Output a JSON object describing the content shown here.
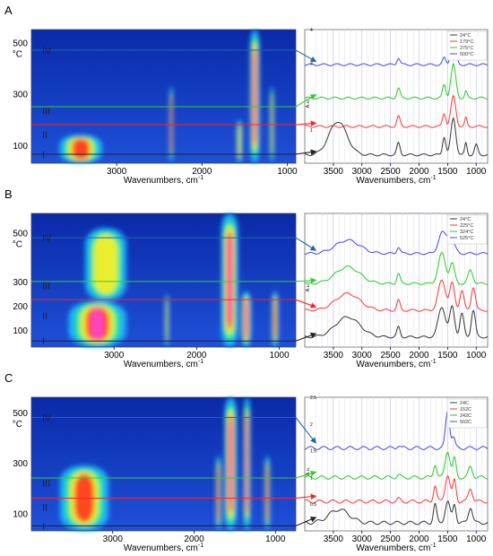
{
  "panels": [
    {
      "letter": "A",
      "heatmap": {
        "type": "heatmap",
        "xlabel": "Wavenumbers, cm",
        "xlabel_sup": "-1",
        "x_reversed": true,
        "x_ticks": [
          3000,
          2000,
          1000
        ],
        "y_unit": "°C",
        "y_ticks": [
          100,
          300,
          500
        ],
        "xlim": [
          4000,
          900
        ],
        "ylim": [
          30,
          550
        ],
        "regions": [
          "I",
          "II",
          "III",
          "IV"
        ],
        "guides": [
          {
            "y": 65,
            "color": "#222222"
          },
          {
            "y": 180,
            "color": "#ff2222"
          },
          {
            "y": 250,
            "color": "#33cc33"
          },
          {
            "y": 470,
            "color": "#2266aa"
          }
        ],
        "bands": [
          {
            "x": 3420,
            "w": 500,
            "y0": 30,
            "y1": 140,
            "i": 0.75
          },
          {
            "x": 2360,
            "w": 40,
            "y0": 30,
            "y1": 330,
            "i": 0.55
          },
          {
            "x": 1560,
            "w": 60,
            "y0": 30,
            "y1": 200,
            "i": 0.45
          },
          {
            "x": 1380,
            "w": 110,
            "y0": 30,
            "y1": 550,
            "i": 1.0
          },
          {
            "x": 1180,
            "w": 40,
            "y0": 30,
            "y1": 330,
            "i": 0.4
          }
        ]
      },
      "spectra": {
        "type": "line",
        "ylabel": "A.u.",
        "x_reversed": true,
        "x_ticks": [
          3500,
          3000,
          2500,
          2000,
          1500,
          1000
        ],
        "xlim": [
          4000,
          800
        ],
        "y_ticks": [
          1,
          2,
          3,
          4
        ],
        "ylim": [
          0,
          4
        ],
        "xlabel": "Wavenumbers, cm",
        "xlabel_sup": "-1",
        "series": [
          {
            "name": "24°C",
            "color": "#333333",
            "offset": 0.25,
            "peaks": [
              [
                3420,
                1.0,
                220
              ],
              [
                2360,
                0.35,
                40
              ],
              [
                1560,
                0.55,
                40
              ],
              [
                1400,
                1.1,
                60
              ],
              [
                1180,
                0.35,
                30
              ],
              [
                1000,
                0.3,
                40
              ]
            ]
          },
          {
            "name": "179°C",
            "color": "#ff3333",
            "offset": 1.1,
            "peaks": [
              [
                2360,
                0.3,
                40
              ],
              [
                1560,
                0.4,
                40
              ],
              [
                1400,
                0.9,
                60
              ],
              [
                1180,
                0.25,
                30
              ]
            ]
          },
          {
            "name": "275°C",
            "color": "#22cc22",
            "offset": 1.95,
            "peaks": [
              [
                2360,
                0.3,
                40
              ],
              [
                1560,
                0.4,
                40
              ],
              [
                1400,
                1.0,
                60
              ],
              [
                1180,
                0.2,
                30
              ]
            ]
          },
          {
            "name": "500°C",
            "color": "#4444ee",
            "offset": 2.95,
            "peaks": [
              [
                2360,
                0.2,
                40
              ],
              [
                1560,
                0.2,
                40
              ],
              [
                1400,
                1.0,
                55
              ]
            ]
          }
        ]
      }
    },
    {
      "letter": "B",
      "heatmap": {
        "type": "heatmap",
        "xlabel": "Wavenumbers, cm",
        "xlabel_sup": "-1",
        "x_reversed": true,
        "x_ticks": [
          3000,
          2000,
          1000
        ],
        "y_unit": "°C",
        "y_ticks": [
          100,
          200,
          300,
          500
        ],
        "xlim": [
          4000,
          800
        ],
        "ylim": [
          30,
          580
        ],
        "regions": [
          "I",
          "II",
          "III",
          "IV"
        ],
        "guides": [
          {
            "y": 55,
            "color": "#222222"
          },
          {
            "y": 225,
            "color": "#ff2222"
          },
          {
            "y": 300,
            "color": "#33cc33"
          },
          {
            "y": 480,
            "color": "#2266aa"
          }
        ],
        "bands": [
          {
            "x": 3200,
            "w": 700,
            "y0": 30,
            "y1": 220,
            "i": 0.9
          },
          {
            "x": 3100,
            "w": 500,
            "y0": 220,
            "y1": 520,
            "i": 0.5
          },
          {
            "x": 2360,
            "w": 40,
            "y0": 30,
            "y1": 250,
            "i": 0.5
          },
          {
            "x": 1600,
            "w": 200,
            "y0": 30,
            "y1": 580,
            "i": 1.0
          },
          {
            "x": 1400,
            "w": 120,
            "y0": 30,
            "y1": 260,
            "i": 0.95
          },
          {
            "x": 1050,
            "w": 80,
            "y0": 30,
            "y1": 260,
            "i": 0.6
          }
        ]
      },
      "spectra": {
        "type": "line",
        "ylabel": "A.u.",
        "x_reversed": true,
        "x_ticks": [
          3500,
          3000,
          2500,
          2000,
          1500,
          1000
        ],
        "xlim": [
          4000,
          800
        ],
        "y_ticks": [],
        "ylim": [
          0,
          4
        ],
        "xlabel": "Wavenumbers, cm",
        "xlabel_sup": "-1",
        "series": [
          {
            "name": "24°C",
            "color": "#333333",
            "offset": 0.3,
            "peaks": [
              [
                3250,
                0.6,
                300
              ],
              [
                2360,
                0.3,
                40
              ],
              [
                1600,
                0.9,
                90
              ],
              [
                1420,
                0.9,
                60
              ],
              [
                1250,
                0.7,
                50
              ],
              [
                1050,
                0.8,
                50
              ]
            ]
          },
          {
            "name": "225°C",
            "color": "#ff3333",
            "offset": 1.1,
            "peaks": [
              [
                3250,
                0.5,
                300
              ],
              [
                2360,
                0.3,
                40
              ],
              [
                1600,
                0.9,
                90
              ],
              [
                1420,
                0.8,
                60
              ],
              [
                1250,
                0.6,
                50
              ],
              [
                1050,
                0.7,
                50
              ]
            ]
          },
          {
            "name": "324°C",
            "color": "#22cc22",
            "offset": 1.9,
            "peaks": [
              [
                3250,
                0.5,
                300
              ],
              [
                2360,
                0.3,
                40
              ],
              [
                1600,
                0.9,
                90
              ],
              [
                1420,
                0.6,
                60
              ],
              [
                1100,
                0.4,
                60
              ]
            ]
          },
          {
            "name": "525°C",
            "color": "#4444ee",
            "offset": 2.8,
            "peaks": [
              [
                3250,
                0.4,
                300
              ],
              [
                2360,
                0.2,
                40
              ],
              [
                1600,
                0.6,
                90
              ],
              [
                1450,
                0.5,
                90
              ]
            ]
          }
        ]
      }
    },
    {
      "letter": "C",
      "heatmap": {
        "type": "heatmap",
        "xlabel": "Wavenumbers, cm",
        "xlabel_sup": "-1",
        "x_reversed": true,
        "x_ticks": [
          3000,
          2000,
          1000
        ],
        "y_unit": "°C",
        "y_ticks": [
          100,
          300,
          500
        ],
        "xlim": [
          4000,
          750
        ],
        "ylim": [
          30,
          560
        ],
        "regions": [
          "I",
          "II",
          "III",
          "IV"
        ],
        "guides": [
          {
            "y": 50,
            "color": "#222222"
          },
          {
            "y": 160,
            "color": "#ff2222"
          },
          {
            "y": 240,
            "color": "#33cc33"
          },
          {
            "y": 480,
            "color": "#2266aa"
          }
        ],
        "bands": [
          {
            "x": 3350,
            "w": 600,
            "y0": 30,
            "y1": 290,
            "i": 0.55
          },
          {
            "x": 1700,
            "w": 60,
            "y0": 30,
            "y1": 330,
            "i": 0.6
          },
          {
            "x": 1550,
            "w": 150,
            "y0": 30,
            "y1": 560,
            "i": 0.95
          },
          {
            "x": 1350,
            "w": 80,
            "y0": 30,
            "y1": 560,
            "i": 0.9
          },
          {
            "x": 1100,
            "w": 60,
            "y0": 30,
            "y1": 330,
            "i": 0.55
          }
        ]
      },
      "spectra": {
        "type": "line",
        "ylabel": "A.u.",
        "x_reversed": true,
        "x_ticks": [
          3500,
          3000,
          2500,
          2000,
          1500,
          1000
        ],
        "xlim": [
          4000,
          800
        ],
        "y_ticks": [
          0.5,
          1.0,
          1.5,
          2.0,
          2.5
        ],
        "ylim": [
          0,
          2.5
        ],
        "xlabel": "Wavenumbers, cm",
        "xlabel_sup": "-1",
        "series": [
          {
            "name": "24C",
            "color": "#333333",
            "offset": 0.15,
            "peaks": [
              [
                3400,
                0.25,
                250
              ],
              [
                1720,
                0.35,
                40
              ],
              [
                1500,
                0.4,
                60
              ],
              [
                1380,
                0.35,
                40
              ],
              [
                1100,
                0.3,
                50
              ]
            ]
          },
          {
            "name": "152C",
            "color": "#ff3333",
            "offset": 0.55,
            "peaks": [
              [
                2360,
                0.05,
                40
              ],
              [
                1720,
                0.3,
                40
              ],
              [
                1500,
                0.5,
                60
              ],
              [
                1380,
                0.4,
                40
              ],
              [
                1100,
                0.25,
                50
              ]
            ]
          },
          {
            "name": "242C",
            "color": "#22cc22",
            "offset": 1.0,
            "peaks": [
              [
                2360,
                0.05,
                40
              ],
              [
                1720,
                0.25,
                40
              ],
              [
                1500,
                0.5,
                60
              ],
              [
                1380,
                0.35,
                40
              ],
              [
                1100,
                0.2,
                50
              ]
            ]
          },
          {
            "name": "502C",
            "color": "#4444ee",
            "offset": 1.55,
            "peaks": [
              [
                2360,
                0.05,
                40
              ],
              [
                1500,
                0.7,
                50
              ],
              [
                1400,
                0.2,
                40
              ]
            ]
          }
        ]
      }
    }
  ]
}
